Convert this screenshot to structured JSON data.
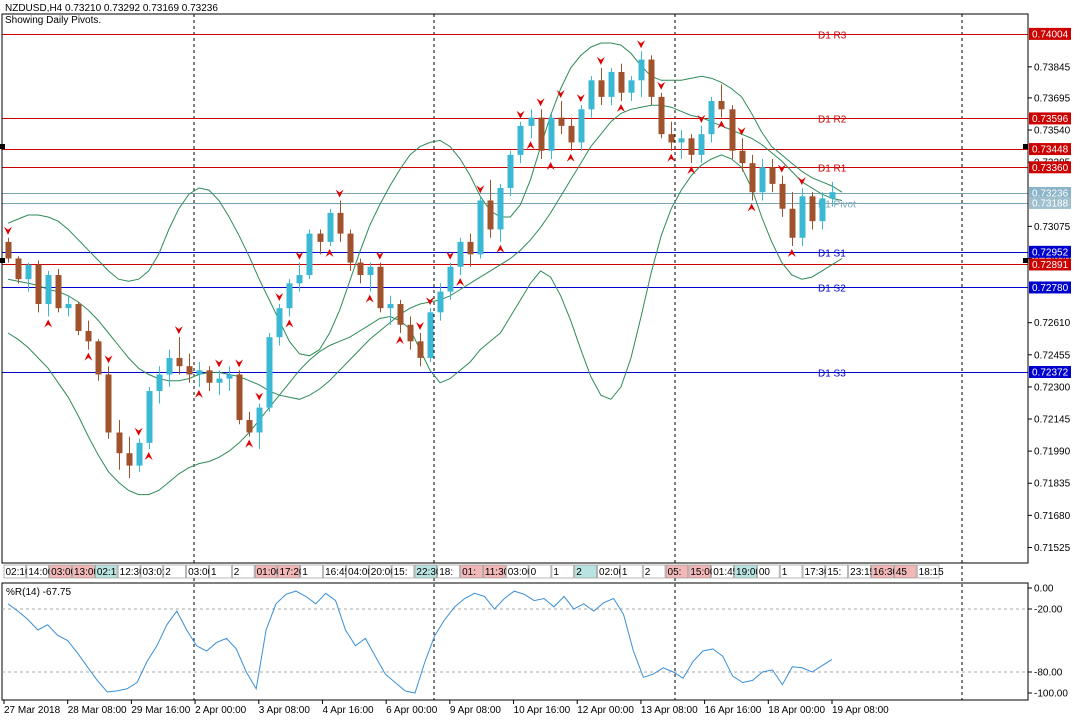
{
  "header": {
    "symbol_line": "NZDUSD,H4  0.73210 0.73292 0.73169 0.73236",
    "subtitle": "Showing Daily Pivots."
  },
  "colors": {
    "bull": "#3bb8d4",
    "bear": "#a0522d",
    "resistance": "#cc0000",
    "support": "#0000cc",
    "band": "#2e8b57",
    "wpr": "#3a8fd6",
    "arrow": "#dd0000"
  },
  "price_axis": {
    "ticks": [
      "0.73845",
      "0.73695",
      "0.73540",
      "0.73385",
      "0.73075",
      "0.72920",
      "0.72610",
      "0.72455",
      "0.72300",
      "0.72145",
      "0.71990",
      "0.71835",
      "0.71680",
      "0.71525"
    ],
    "badges": [
      {
        "label": "0.74004",
        "kind": "resistance"
      },
      {
        "label": "0.73596",
        "kind": "resistance"
      },
      {
        "label": "0.73448",
        "kind": "resistance"
      },
      {
        "label": "0.73360",
        "kind": "resistance"
      },
      {
        "label": "0.73236",
        "kind": "current"
      },
      {
        "label": "0.73188",
        "kind": "pivot"
      },
      {
        "label": "0.72952",
        "kind": "support"
      },
      {
        "label": "0.72891",
        "kind": "resistance"
      },
      {
        "label": "0.72780",
        "kind": "support"
      },
      {
        "label": "0.72372",
        "kind": "support"
      }
    ]
  },
  "pivot_labels": [
    "D1 R3",
    "D1 R2",
    "D1 R1",
    "D1 Pivot",
    "D1 S1",
    "D1 S2",
    "D1 S3"
  ],
  "time_axis": [
    "27 Mar 2018",
    "28 Mar 08:00",
    "29 Mar 16:00",
    "2 Apr 00:00",
    "3 Apr 08:00",
    "4 Apr 16:00",
    "6 Apr 00:00",
    "9 Apr 08:00",
    "10 Apr 16:00",
    "12 Apr 00:00",
    "13 Apr 08:00",
    "16 Apr 16:00",
    "18 Apr 00:00",
    "19 Apr 08:00"
  ],
  "session_strip": [
    "02:10",
    "14:00",
    "03:00",
    "13:00",
    "02:1",
    "12:30",
    "03:01",
    "2",
    "03:00",
    "1",
    "2",
    "01:00",
    "17:20",
    "1",
    "16:45",
    "04:00",
    "20:00",
    "15:",
    "22:30",
    "18:",
    "01:",
    "11:30",
    "03:00",
    "0",
    "1",
    "2",
    "02:00",
    "1",
    "2",
    "05:",
    "15:00",
    "01:45",
    "19:00",
    "00",
    "1",
    "17:30",
    "15:",
    "23:15",
    "16:30",
    "45",
    "18:15"
  ],
  "indicator": {
    "label": "%R(14) -67.75",
    "ticks": [
      "0.00",
      "-20.00",
      "-80.00",
      "-100.00"
    ]
  },
  "chart_data": {
    "type": "candlestick",
    "title": "NZDUSD,H4",
    "ylim": [
      0.7145,
      0.741
    ],
    "candles": [
      [
        0.73,
        0.7302,
        0.729,
        0.7292
      ],
      [
        0.7292,
        0.7293,
        0.728,
        0.7282
      ],
      [
        0.7282,
        0.729,
        0.7276,
        0.7289
      ],
      [
        0.7289,
        0.7291,
        0.7266,
        0.727
      ],
      [
        0.727,
        0.7286,
        0.7264,
        0.7284
      ],
      [
        0.7284,
        0.7287,
        0.7266,
        0.7268
      ],
      [
        0.7268,
        0.7274,
        0.7264,
        0.727
      ],
      [
        0.727,
        0.7271,
        0.7255,
        0.7257
      ],
      [
        0.7257,
        0.7262,
        0.7248,
        0.7252
      ],
      [
        0.7252,
        0.7253,
        0.7233,
        0.7236
      ],
      [
        0.7236,
        0.724,
        0.7205,
        0.7208
      ],
      [
        0.7208,
        0.7214,
        0.719,
        0.7198
      ],
      [
        0.7198,
        0.7206,
        0.7186,
        0.7192
      ],
      [
        0.7192,
        0.7205,
        0.7189,
        0.7203
      ],
      [
        0.7203,
        0.723,
        0.72,
        0.7228
      ],
      [
        0.7228,
        0.724,
        0.7222,
        0.7236
      ],
      [
        0.7236,
        0.7248,
        0.723,
        0.7244
      ],
      [
        0.7244,
        0.7254,
        0.7236,
        0.724
      ],
      [
        0.724,
        0.7246,
        0.7232,
        0.7236
      ],
      [
        0.7236,
        0.7242,
        0.723,
        0.7238
      ],
      [
        0.7238,
        0.724,
        0.7228,
        0.7232
      ],
      [
        0.7232,
        0.7238,
        0.7226,
        0.7234
      ],
      [
        0.7234,
        0.724,
        0.7228,
        0.7236
      ],
      [
        0.7236,
        0.7238,
        0.7212,
        0.7214
      ],
      [
        0.7214,
        0.7218,
        0.7206,
        0.7208
      ],
      [
        0.7208,
        0.7222,
        0.72,
        0.722
      ],
      [
        0.722,
        0.7256,
        0.7218,
        0.7254
      ],
      [
        0.7254,
        0.727,
        0.725,
        0.7268
      ],
      [
        0.7268,
        0.7282,
        0.7264,
        0.728
      ],
      [
        0.728,
        0.729,
        0.7276,
        0.7284
      ],
      [
        0.7284,
        0.7306,
        0.7282,
        0.7304
      ],
      [
        0.7304,
        0.7306,
        0.7294,
        0.73
      ],
      [
        0.73,
        0.7316,
        0.7298,
        0.7314
      ],
      [
        0.7314,
        0.732,
        0.73,
        0.7304
      ],
      [
        0.7304,
        0.7306,
        0.7286,
        0.729
      ],
      [
        0.729,
        0.7292,
        0.728,
        0.7284
      ],
      [
        0.7284,
        0.729,
        0.7276,
        0.7288
      ],
      [
        0.7288,
        0.729,
        0.7266,
        0.7268
      ],
      [
        0.7268,
        0.7274,
        0.726,
        0.727
      ],
      [
        0.727,
        0.7272,
        0.7256,
        0.726
      ],
      [
        0.726,
        0.7264,
        0.7248,
        0.7252
      ],
      [
        0.7252,
        0.7256,
        0.724,
        0.7244
      ],
      [
        0.7244,
        0.7268,
        0.7242,
        0.7266
      ],
      [
        0.7266,
        0.728,
        0.7262,
        0.7276
      ],
      [
        0.7276,
        0.729,
        0.7272,
        0.7288
      ],
      [
        0.7288,
        0.7302,
        0.7284,
        0.73
      ],
      [
        0.73,
        0.7304,
        0.7288,
        0.7294
      ],
      [
        0.7294,
        0.7322,
        0.7292,
        0.732
      ],
      [
        0.732,
        0.733,
        0.7302,
        0.7306
      ],
      [
        0.7306,
        0.7328,
        0.73,
        0.7326
      ],
      [
        0.7326,
        0.7344,
        0.7322,
        0.7342
      ],
      [
        0.7342,
        0.7358,
        0.7338,
        0.7356
      ],
      [
        0.7356,
        0.7364,
        0.735,
        0.736
      ],
      [
        0.736,
        0.7364,
        0.734,
        0.7344
      ],
      [
        0.7344,
        0.7362,
        0.734,
        0.736
      ],
      [
        0.736,
        0.7368,
        0.7352,
        0.7356
      ],
      [
        0.7356,
        0.736,
        0.7344,
        0.7348
      ],
      [
        0.7348,
        0.7366,
        0.7344,
        0.7364
      ],
      [
        0.7364,
        0.738,
        0.736,
        0.7378
      ],
      [
        0.7378,
        0.7384,
        0.7366,
        0.737
      ],
      [
        0.737,
        0.7384,
        0.7366,
        0.7382
      ],
      [
        0.7382,
        0.7386,
        0.7368,
        0.7372
      ],
      [
        0.7372,
        0.738,
        0.7368,
        0.7378
      ],
      [
        0.7378,
        0.7392,
        0.737,
        0.7388
      ],
      [
        0.7388,
        0.739,
        0.7366,
        0.737
      ],
      [
        0.737,
        0.7372,
        0.735,
        0.7352
      ],
      [
        0.7352,
        0.7358,
        0.7344,
        0.7348
      ],
      [
        0.7348,
        0.7354,
        0.734,
        0.735
      ],
      [
        0.735,
        0.7352,
        0.7338,
        0.7342
      ],
      [
        0.7342,
        0.7356,
        0.7338,
        0.7352
      ],
      [
        0.7352,
        0.737,
        0.7348,
        0.7368
      ],
      [
        0.7368,
        0.7376,
        0.736,
        0.7364
      ],
      [
        0.7364,
        0.7366,
        0.734,
        0.7344
      ],
      [
        0.7344,
        0.735,
        0.7334,
        0.7338
      ],
      [
        0.7338,
        0.7342,
        0.732,
        0.7324
      ],
      [
        0.7324,
        0.734,
        0.732,
        0.7336
      ],
      [
        0.7336,
        0.734,
        0.7324,
        0.7328
      ],
      [
        0.7328,
        0.7332,
        0.7312,
        0.7316
      ],
      [
        0.7316,
        0.7324,
        0.7298,
        0.7302
      ],
      [
        0.7302,
        0.7326,
        0.7298,
        0.7322
      ],
      [
        0.7322,
        0.7324,
        0.7306,
        0.731
      ],
      [
        0.731,
        0.7324,
        0.7306,
        0.7321
      ],
      [
        0.7321,
        0.7329,
        0.7317,
        0.7324
      ]
    ],
    "bollinger": {
      "upper": [
        0.7309,
        0.7311,
        0.7313,
        0.7313,
        0.7312,
        0.731,
        0.7306,
        0.7301,
        0.7296,
        0.7291,
        0.7286,
        0.7282,
        0.7281,
        0.7282,
        0.7286,
        0.7294,
        0.7306,
        0.7316,
        0.7323,
        0.7326,
        0.7325,
        0.732,
        0.7312,
        0.7303,
        0.7293,
        0.7282,
        0.7272,
        0.7262,
        0.7252,
        0.7246,
        0.7245,
        0.7248,
        0.7256,
        0.7267,
        0.7281,
        0.7295,
        0.7308,
        0.7318,
        0.7327,
        0.7335,
        0.7342,
        0.7346,
        0.7348,
        0.7349,
        0.7346,
        0.734,
        0.7332,
        0.7322,
        0.7315,
        0.7312,
        0.7312,
        0.7318,
        0.733,
        0.7346,
        0.7361,
        0.7374,
        0.7384,
        0.739,
        0.7394,
        0.7396,
        0.7396,
        0.7395,
        0.7391,
        0.7385,
        0.738,
        0.7378,
        0.7378,
        0.7378,
        0.7379,
        0.738,
        0.7379,
        0.7377,
        0.7374,
        0.737,
        0.7362,
        0.7353,
        0.7346,
        0.7342,
        0.7338,
        0.7334,
        0.7331,
        0.7329,
        0.7327,
        0.7324
      ],
      "middle": [
        0.7282,
        0.7281,
        0.728,
        0.7279,
        0.7277,
        0.7276,
        0.7274,
        0.7271,
        0.7267,
        0.7262,
        0.7256,
        0.725,
        0.7244,
        0.7239,
        0.7236,
        0.7234,
        0.7233,
        0.7233,
        0.7234,
        0.7236,
        0.7237,
        0.7237,
        0.7236,
        0.7235,
        0.7233,
        0.7231,
        0.7228,
        0.7226,
        0.7225,
        0.7224,
        0.7226,
        0.7229,
        0.7233,
        0.7238,
        0.7243,
        0.7248,
        0.7253,
        0.7257,
        0.7261,
        0.7265,
        0.7268,
        0.727,
        0.7271,
        0.7272,
        0.7274,
        0.7277,
        0.728,
        0.7283,
        0.7286,
        0.7289,
        0.7292,
        0.7296,
        0.7301,
        0.7307,
        0.7314,
        0.7322,
        0.733,
        0.7338,
        0.7346,
        0.7352,
        0.7358,
        0.7362,
        0.7364,
        0.7365,
        0.7366,
        0.7366,
        0.7365,
        0.7363,
        0.7361,
        0.736,
        0.7358,
        0.7356,
        0.7354,
        0.7352,
        0.735,
        0.7347,
        0.7343,
        0.7339,
        0.7334,
        0.7329,
        0.7326,
        0.7323,
        0.7321,
        0.732
      ],
      "lower": [
        0.7256,
        0.7253,
        0.7249,
        0.7244,
        0.7239,
        0.7232,
        0.7225,
        0.7216,
        0.7206,
        0.7197,
        0.7189,
        0.7184,
        0.718,
        0.7178,
        0.7178,
        0.718,
        0.7184,
        0.7188,
        0.7191,
        0.7193,
        0.7194,
        0.7196,
        0.7199,
        0.7203,
        0.7208,
        0.7214,
        0.722,
        0.7226,
        0.7232,
        0.7238,
        0.7243,
        0.7247,
        0.725,
        0.7252,
        0.7254,
        0.7257,
        0.726,
        0.7263,
        0.7264,
        0.7262,
        0.7258,
        0.7248,
        0.7238,
        0.7232,
        0.7234,
        0.7238,
        0.7242,
        0.7248,
        0.7252,
        0.7256,
        0.7264,
        0.7272,
        0.728,
        0.7286,
        0.7283,
        0.7274,
        0.7262,
        0.7248,
        0.7235,
        0.7226,
        0.7224,
        0.723,
        0.7244,
        0.7264,
        0.7285,
        0.7303,
        0.7316,
        0.7325,
        0.7332,
        0.7337,
        0.734,
        0.7342,
        0.734,
        0.7336,
        0.7326,
        0.7312,
        0.73,
        0.729,
        0.7284,
        0.7282,
        0.7283,
        0.7286,
        0.7289,
        0.7292
      ]
    },
    "pivots": [
      {
        "name": "D1 R3",
        "value": 0.74004,
        "kind": "resistance"
      },
      {
        "name": "D1 R2",
        "value": 0.73596,
        "kind": "resistance"
      },
      {
        "name": "D1 R1",
        "value": 0.7336,
        "kind": "resistance"
      },
      {
        "name": "D1 Pivot",
        "value": 0.73188,
        "kind": "pivot"
      },
      {
        "name": "D1 S1",
        "value": 0.72952,
        "kind": "support"
      },
      {
        "name": "D1 S2",
        "value": 0.7278,
        "kind": "support"
      },
      {
        "name": "D1 S3",
        "value": 0.72372,
        "kind": "support"
      }
    ],
    "extra_levels": [
      {
        "value": 0.73448,
        "kind": "resistance"
      },
      {
        "value": 0.72891,
        "kind": "resistance"
      },
      {
        "value": 0.73236,
        "kind": "current"
      }
    ],
    "arrows_down": [
      0,
      10,
      13,
      17,
      21,
      23,
      25,
      27,
      29,
      33,
      37,
      41,
      42,
      44,
      47,
      51,
      53,
      55,
      57,
      59,
      63,
      65,
      69,
      73,
      77,
      79
    ],
    "arrows_up": [
      4,
      8,
      14,
      19,
      24,
      28,
      32,
      36,
      39,
      45,
      49,
      52,
      54,
      56,
      61,
      66,
      68,
      71,
      74,
      78
    ],
    "williams_r": {
      "name": "%R(14)",
      "last": -67.75,
      "ylim": [
        -100,
        0
      ],
      "values": [
        -15,
        -22,
        -30,
        -40,
        -35,
        -45,
        -50,
        -62,
        -75,
        -88,
        -99,
        -98,
        -96,
        -90,
        -70,
        -55,
        -35,
        -22,
        -40,
        -55,
        -60,
        -52,
        -48,
        -58,
        -80,
        -96,
        -40,
        -15,
        -6,
        -3,
        -8,
        -15,
        -5,
        -12,
        -40,
        -55,
        -48,
        -65,
        -82,
        -90,
        -98,
        -100,
        -70,
        -45,
        -30,
        -18,
        -10,
        -5,
        -8,
        -20,
        -10,
        -3,
        -6,
        -12,
        -10,
        -18,
        -8,
        -20,
        -15,
        -22,
        -14,
        -10,
        -25,
        -60,
        -85,
        -82,
        -76,
        -80,
        -86,
        -70,
        -60,
        -58,
        -65,
        -84,
        -90,
        -88,
        -80,
        -78,
        -92,
        -75,
        -76,
        -80,
        -74,
        -68
      ]
    }
  }
}
